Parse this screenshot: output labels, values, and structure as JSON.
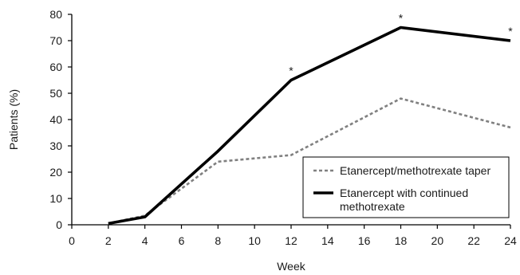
{
  "chart_data": {
    "type": "line",
    "xlabel": "Week",
    "ylabel": "Patients (%)",
    "xlim": [
      0,
      24
    ],
    "ylim": [
      0,
      80
    ],
    "x_ticks": [
      0,
      2,
      4,
      6,
      8,
      10,
      12,
      14,
      16,
      18,
      20,
      22,
      24
    ],
    "y_ticks": [
      0,
      10,
      20,
      30,
      40,
      50,
      60,
      70,
      80
    ],
    "grid": false,
    "legend_position": "bottom-right",
    "series": [
      {
        "name": "Etanercept/methotrexate taper",
        "style": "dashed",
        "color": "#808080",
        "points": [
          [
            2,
            0.5
          ],
          [
            4,
            3.5
          ],
          [
            8,
            24
          ],
          [
            12,
            26.5
          ],
          [
            18,
            48
          ],
          [
            24,
            37
          ]
        ]
      },
      {
        "name": "Etanercept with continued methotrexate",
        "style": "solid",
        "color": "#000000",
        "points": [
          [
            2,
            0.5
          ],
          [
            4,
            3
          ],
          [
            8,
            28
          ],
          [
            12,
            55
          ],
          [
            18,
            75
          ],
          [
            24,
            70
          ]
        ]
      }
    ],
    "annotations": [
      {
        "text": "*",
        "x": 12,
        "y": 55
      },
      {
        "text": "*",
        "x": 18,
        "y": 75
      },
      {
        "text": "*",
        "x": 24,
        "y": 70
      }
    ]
  }
}
